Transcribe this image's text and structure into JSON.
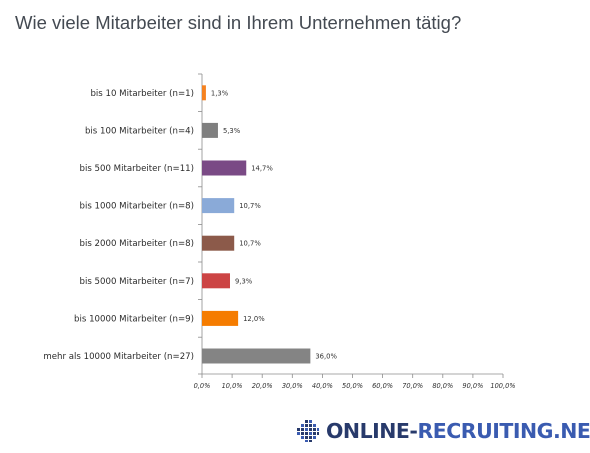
{
  "header": {
    "title": "Wie viele Mitarbeiter sind in Ihrem Unternehmen tätig?"
  },
  "chart_data": {
    "type": "bar",
    "orientation": "horizontal",
    "title": "",
    "xlabel": "",
    "ylabel": "",
    "xlim": [
      0,
      100
    ],
    "grid": false,
    "categories": [
      "bis 10 Mitarbeiter (n=1)",
      "bis 100 Mitarbeiter (n=4)",
      "bis 500 Mitarbeiter (n=11)",
      "bis 1000 Mitarbeiter (n=8)",
      "bis 2000 Mitarbeiter (n=8)",
      "bis 5000 Mitarbeiter (n=7)",
      "bis 10000 Mitarbeiter (n=9)",
      "mehr als 10000 Mitarbeiter (n=27)"
    ],
    "values": [
      1.3,
      5.3,
      14.7,
      10.7,
      10.7,
      9.3,
      12.0,
      36.0
    ],
    "value_labels": [
      "1,3%",
      "5,3%",
      "14,7%",
      "10,7%",
      "10,7%",
      "9,3%",
      "12,0%",
      "36,0%"
    ],
    "colors": [
      "#f58220",
      "#7f7f7f",
      "#7a4a85",
      "#8aaad8",
      "#8c5a4a",
      "#cc4444",
      "#f57c00",
      "#848484"
    ],
    "ticks": [
      0,
      10,
      20,
      30,
      40,
      50,
      60,
      70,
      80,
      90,
      100
    ],
    "tick_labels": [
      "0,0%",
      "10,0%",
      "20,0%",
      "30,0%",
      "40,0%",
      "50,0%",
      "60,0%",
      "70,0%",
      "80,0%",
      "90,0%",
      "100,0%"
    ]
  },
  "logo": {
    "text_part1": "ONLINE-",
    "text_part2": "RECRUITING.NET",
    "icon": "dotted-square-logo-icon"
  }
}
